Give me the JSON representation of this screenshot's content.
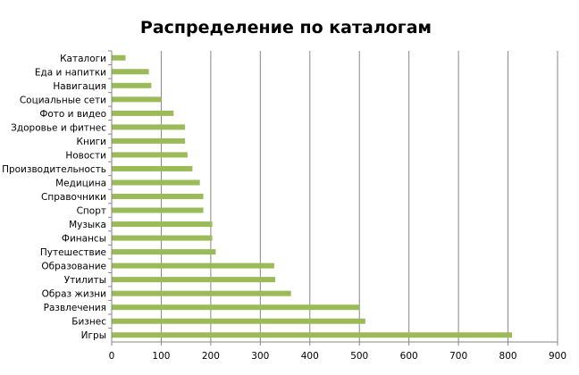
{
  "chart_data": {
    "type": "bar",
    "orientation": "horizontal",
    "title": "Распределение по каталогам",
    "xlabel": "",
    "ylabel": "",
    "xlim": [
      0,
      900
    ],
    "xticks": [
      0,
      100,
      200,
      300,
      400,
      500,
      600,
      700,
      800,
      900
    ],
    "grid": true,
    "legend": "none",
    "bar_color": "#9bbb59",
    "categories": [
      "Каталоги",
      "Еда и напитки",
      "Навигация",
      "Социальные сети",
      "Фото и видео",
      "Здоровье и фитнес",
      "Книги",
      "Новости",
      "Производительность",
      "Медицина",
      "Справочники",
      "Спорт",
      "Музыка",
      "Финансы",
      "Путешествие",
      "Образование",
      "Утилиты",
      "Образ жизни",
      "Развлечения",
      "Бизнес",
      "Игры"
    ],
    "values": [
      28,
      75,
      80,
      100,
      125,
      148,
      148,
      153,
      163,
      178,
      185,
      185,
      203,
      203,
      210,
      328,
      330,
      362,
      500,
      512,
      808
    ]
  }
}
